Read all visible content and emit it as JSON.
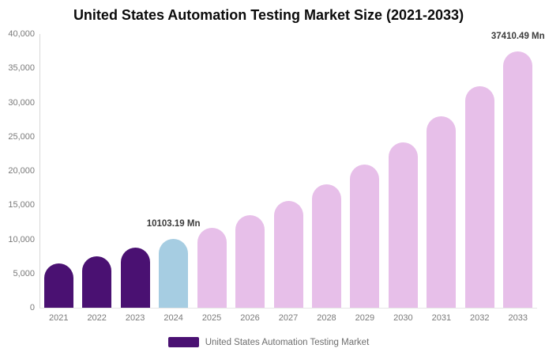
{
  "title": "United States Automation Testing Market Size (2021-2033)",
  "colors": {
    "historical": "#4A1172",
    "base_year": "#A6CDE2",
    "forecast": "#E7BFE9",
    "title_text": "#0B0B0B",
    "axis_text": "#7A7A7A",
    "annotation_text": "#3B3B3B",
    "legend_text": "#6E6E6E",
    "y_axis_line": "#D8D8D8",
    "x_axis_line": "#E6E6E6"
  },
  "legend": {
    "label": "United States Automation Testing Market",
    "swatch_color": "#4A1172"
  },
  "chart_data": {
    "type": "bar",
    "title": "United States Automation Testing Market Size (2021-2033)",
    "unit": "Mn",
    "categories": [
      "2021",
      "2022",
      "2023",
      "2024",
      "2025",
      "2026",
      "2027",
      "2028",
      "2029",
      "2030",
      "2031",
      "2032",
      "2033"
    ],
    "series": [
      {
        "name": "United States Automation Testing Market",
        "values": [
          6530,
          7553,
          8736,
          10103.19,
          11685,
          13515,
          15631,
          18078,
          20909,
          24182,
          27969,
          32348,
          37410.49
        ]
      }
    ],
    "color_keys": [
      "historical",
      "historical",
      "historical",
      "base_year",
      "forecast",
      "forecast",
      "forecast",
      "forecast",
      "forecast",
      "forecast",
      "forecast",
      "forecast",
      "forecast"
    ],
    "ylim": [
      0,
      40000
    ],
    "ytick_step": 5000,
    "ytick_labels": [
      "0",
      "5,000",
      "10,000",
      "15,000",
      "20,000",
      "25,000",
      "30,000",
      "35,000",
      "40,000"
    ],
    "grid": false,
    "legend_position": "bottom",
    "annotations": [
      {
        "index": 3,
        "text": "10103.19 Mn"
      },
      {
        "index": 12,
        "text": "37410.49 Mn"
      }
    ]
  }
}
